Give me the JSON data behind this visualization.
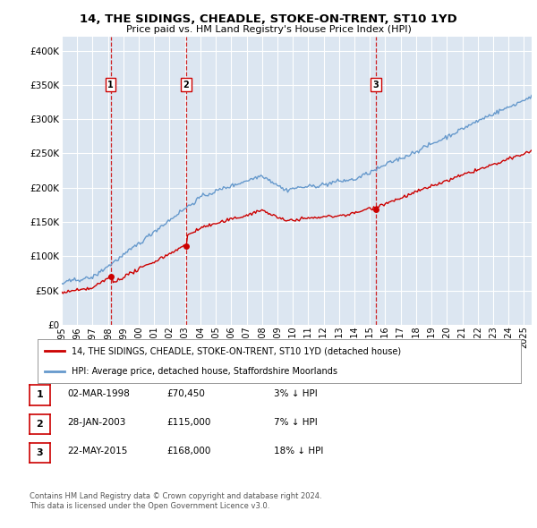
{
  "title1": "14, THE SIDINGS, CHEADLE, STOKE-ON-TRENT, ST10 1YD",
  "title2": "Price paid vs. HM Land Registry's House Price Index (HPI)",
  "ylabel_ticks": [
    "£0",
    "£50K",
    "£100K",
    "£150K",
    "£200K",
    "£250K",
    "£300K",
    "£350K",
    "£400K"
  ],
  "ytick_vals": [
    0,
    50000,
    100000,
    150000,
    200000,
    250000,
    300000,
    350000,
    400000
  ],
  "ylim": [
    0,
    420000
  ],
  "xlim_start": 1995.0,
  "xlim_end": 2025.5,
  "sale_dates": [
    1998.17,
    2003.08,
    2015.39
  ],
  "sale_prices": [
    70450,
    115000,
    168000
  ],
  "sale_labels": [
    "1",
    "2",
    "3"
  ],
  "legend_line1": "14, THE SIDINGS, CHEADLE, STOKE-ON-TRENT, ST10 1YD (detached house)",
  "legend_line2": "HPI: Average price, detached house, Staffordshire Moorlands",
  "table_rows": [
    {
      "num": "1",
      "date": "02-MAR-1998",
      "price": "£70,450",
      "hpi": "3% ↓ HPI"
    },
    {
      "num": "2",
      "date": "28-JAN-2003",
      "price": "£115,000",
      "hpi": "7% ↓ HPI"
    },
    {
      "num": "3",
      "date": "22-MAY-2015",
      "price": "£168,000",
      "hpi": "18% ↓ HPI"
    }
  ],
  "footer1": "Contains HM Land Registry data © Crown copyright and database right 2024.",
  "footer2": "This data is licensed under the Open Government Licence v3.0.",
  "price_color": "#cc0000",
  "hpi_color": "#6699cc",
  "bg_color": "#dce6f1",
  "grid_color": "#ffffff",
  "sale_marker_color": "#cc0000",
  "dashed_line_color": "#cc0000"
}
